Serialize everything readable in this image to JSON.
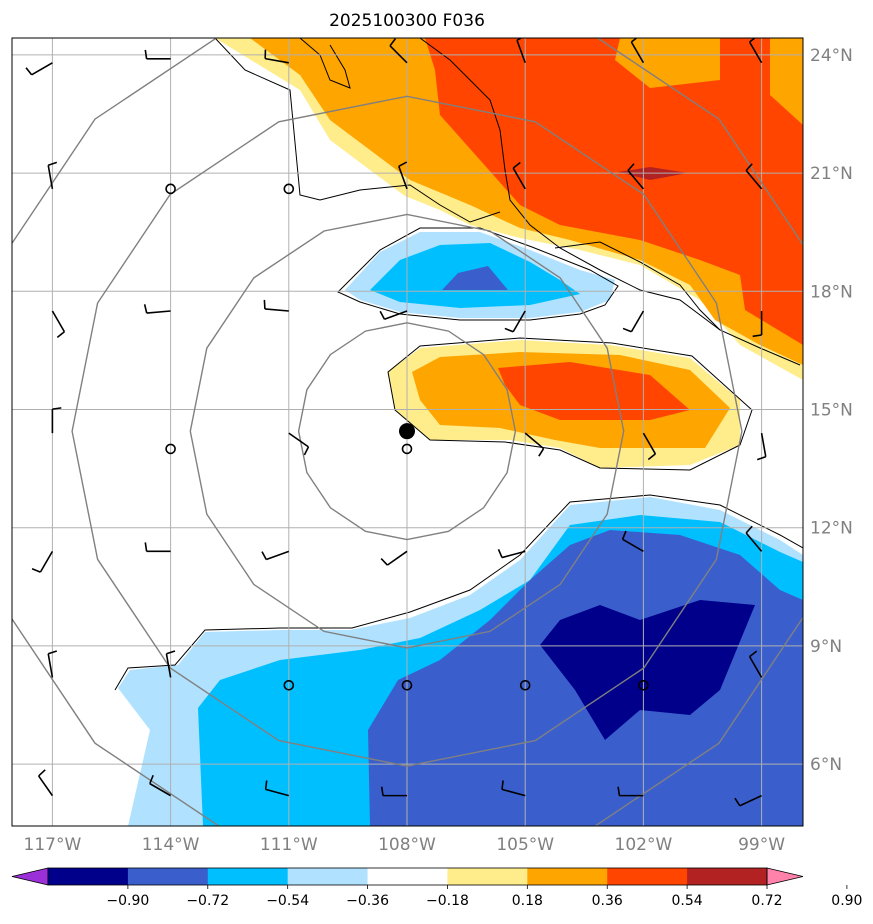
{
  "title": "2025100300 F036",
  "lat_labels": [
    {
      "label": "24°N",
      "lat": 24
    },
    {
      "label": "21°N",
      "lat": 21
    },
    {
      "label": "18°N",
      "lat": 18
    },
    {
      "label": "15°N",
      "lat": 15
    },
    {
      "label": "12°N",
      "lat": 12
    },
    {
      "label": "9°N",
      "lat": 9
    },
    {
      "label": "6°N",
      "lat": 6
    }
  ],
  "lon_labels": [
    {
      "label": "117°W",
      "lon": -117
    },
    {
      "label": "114°W",
      "lon": -114
    },
    {
      "label": "111°W",
      "lon": -111
    },
    {
      "label": "108°W",
      "lon": -108
    },
    {
      "label": "105°W",
      "lon": -105
    },
    {
      "label": "102°W",
      "lon": -102
    },
    {
      "label": "99°W",
      "lon": -99
    }
  ],
  "colorbar": {
    "boundaries": [
      "−0.90",
      "−0.72",
      "−0.54",
      "−0.36",
      "−0.18",
      "0.18",
      "0.36",
      "0.54",
      "0.72",
      "0.90"
    ],
    "colors": [
      "#9b30d9",
      "#00008b",
      "#3a5fcd",
      "#00bfff",
      "#b0e2ff",
      "#ffffff",
      "#ffec8b",
      "#ffa500",
      "#ff4500",
      "#b22222",
      "#ff82ab"
    ]
  },
  "colors": {
    "gridline": "#b0b0b0",
    "label": "#808080",
    "range_ring": "#808080",
    "coastline": "#000000",
    "storm_center": "#000000"
  },
  "storm_center": {
    "lon": -108,
    "lat": 14.45
  },
  "range_rings_deg": [
    2.75,
    5.5,
    8.5,
    11.2
  ],
  "wind_barbs": [
    {
      "lon": -117,
      "lat": 23.8,
      "dir": 240
    },
    {
      "lon": -114,
      "lat": 23.9,
      "dir": 270
    },
    {
      "lon": -111,
      "lat": 23.8,
      "dir": 280
    },
    {
      "lon": -108,
      "lat": 23.8,
      "dir": 315
    },
    {
      "lon": -105,
      "lat": 23.8,
      "dir": 340
    },
    {
      "lon": -102,
      "lat": 23.8,
      "dir": 330
    },
    {
      "lon": -99,
      "lat": 23.8,
      "dir": 330
    },
    {
      "lon": -117,
      "lat": 20.6,
      "dir": 350
    },
    {
      "lon": -108,
      "lat": 20.6,
      "dir": 340
    },
    {
      "lon": -105,
      "lat": 20.6,
      "dir": 330
    },
    {
      "lon": -102,
      "lat": 20.6,
      "dir": 320
    },
    {
      "lon": -99,
      "lat": 20.6,
      "dir": 320
    },
    {
      "lon": -117,
      "lat": 17.5,
      "dir": 150
    },
    {
      "lon": -114,
      "lat": 17.5,
      "dir": 265
    },
    {
      "lon": -111,
      "lat": 17.5,
      "dir": 275
    },
    {
      "lon": -108,
      "lat": 17.5,
      "dir": 250
    },
    {
      "lon": -105,
      "lat": 17.5,
      "dir": 210
    },
    {
      "lon": -102,
      "lat": 17.5,
      "dir": 210
    },
    {
      "lon": -99,
      "lat": 17.5,
      "dir": 180
    },
    {
      "lon": -117,
      "lat": 14.4,
      "dir": 0
    },
    {
      "lon": -111,
      "lat": 14.4,
      "dir": 125
    },
    {
      "lon": -105,
      "lat": 14.4,
      "dir": 130
    },
    {
      "lon": -102,
      "lat": 14.4,
      "dir": 150
    },
    {
      "lon": -99,
      "lat": 14.4,
      "dir": 170
    },
    {
      "lon": -117,
      "lat": 11.4,
      "dir": 210
    },
    {
      "lon": -114,
      "lat": 11.4,
      "dir": 270
    },
    {
      "lon": -111,
      "lat": 11.4,
      "dir": 250
    },
    {
      "lon": -108,
      "lat": 11.4,
      "dir": 235
    },
    {
      "lon": -105,
      "lat": 11.4,
      "dir": 255
    },
    {
      "lon": -102,
      "lat": 11.4,
      "dir": 300
    },
    {
      "lon": -99,
      "lat": 11.4,
      "dir": 320
    },
    {
      "lon": -117,
      "lat": 8.2,
      "dir": 350
    },
    {
      "lon": -114,
      "lat": 8.2,
      "dir": 350
    },
    {
      "lon": -99,
      "lat": 8.2,
      "dir": 330
    },
    {
      "lon": -117,
      "lat": 5.2,
      "dir": 325
    },
    {
      "lon": -114,
      "lat": 5.2,
      "dir": 300
    },
    {
      "lon": -111,
      "lat": 5.2,
      "dir": 285
    },
    {
      "lon": -108,
      "lat": 5.2,
      "dir": 270
    },
    {
      "lon": -105,
      "lat": 5.2,
      "dir": 285
    },
    {
      "lon": -102,
      "lat": 5.2,
      "dir": 270
    },
    {
      "lon": -99,
      "lat": 5.2,
      "dir": 245
    }
  ],
  "calm_circles": [
    {
      "lon": -114,
      "lat": 20.6
    },
    {
      "lon": -111,
      "lat": 20.6
    },
    {
      "lon": -114,
      "lat": 14.0
    },
    {
      "lon": -108,
      "lat": 14.0
    },
    {
      "lon": -111,
      "lat": 8.0
    },
    {
      "lon": -108,
      "lat": 8.0
    },
    {
      "lon": -105,
      "lat": 8.0
    },
    {
      "lon": -102,
      "lat": 8.0
    }
  ]
}
